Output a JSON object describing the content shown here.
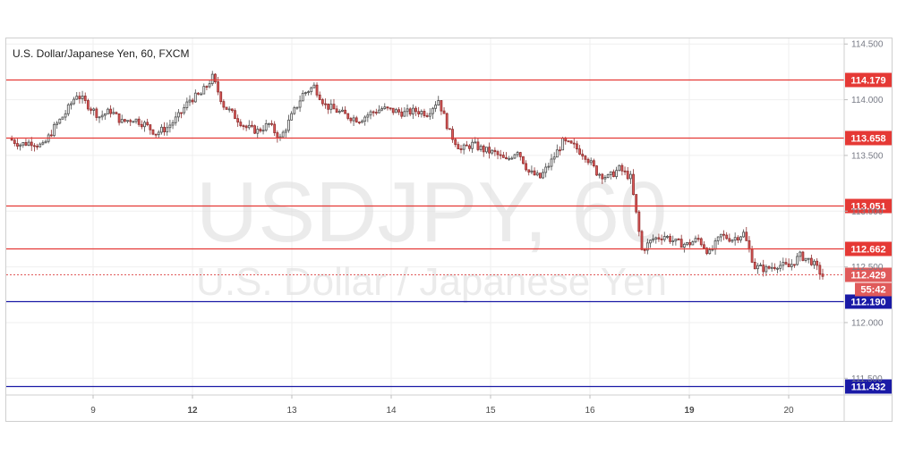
{
  "header": {
    "title": "U.S. Dollar/Japanese Yen, 60, FXCM"
  },
  "watermark": {
    "symbol": "USDJPY, 60",
    "name": "U.S. Dollar / Japanese Yen"
  },
  "colors": {
    "resistance": "#e53935",
    "support": "#1a1aa6",
    "current_price": "#e05a5a",
    "candle_up": "#ffffff",
    "candle_down": "#e05a5a",
    "grid": "#efefef"
  },
  "chart_data": {
    "type": "candlestick",
    "symbol": "USDJPY",
    "interval": "60",
    "ylim": [
      111.35,
      114.55
    ],
    "y_ticks": [
      "114.500",
      "114.000",
      "113.500",
      "113.000",
      "112.500",
      "112.000",
      "111.500"
    ],
    "x_tick_labels": [
      {
        "label": "9",
        "bold": false
      },
      {
        "label": "12",
        "bold": true
      },
      {
        "label": "13",
        "bold": false
      },
      {
        "label": "14",
        "bold": false
      },
      {
        "label": "15",
        "bold": false
      },
      {
        "label": "16",
        "bold": false
      },
      {
        "label": "19",
        "bold": true
      },
      {
        "label": "20",
        "bold": false
      }
    ],
    "levels": [
      {
        "value": 114.179,
        "label": "114.179",
        "type": "resistance"
      },
      {
        "value": 113.658,
        "label": "113.658",
        "type": "resistance"
      },
      {
        "value": 113.051,
        "label": "113.051",
        "type": "resistance"
      },
      {
        "value": 112.662,
        "label": "112.662",
        "type": "resistance"
      },
      {
        "value": 112.19,
        "label": "112.190",
        "type": "support"
      },
      {
        "value": 111.432,
        "label": "111.432",
        "type": "support"
      }
    ],
    "current_price": {
      "value": 112.429,
      "label": "112.429",
      "countdown": "55:42"
    },
    "close_path": [
      [
        0,
        113.65
      ],
      [
        4,
        113.6
      ],
      [
        8,
        113.62
      ],
      [
        12,
        113.58
      ],
      [
        16,
        113.75
      ],
      [
        20,
        113.88
      ],
      [
        24,
        114.05
      ],
      [
        28,
        113.95
      ],
      [
        32,
        113.85
      ],
      [
        36,
        113.9
      ],
      [
        40,
        113.8
      ],
      [
        44,
        113.83
      ],
      [
        48,
        113.78
      ],
      [
        52,
        113.7
      ],
      [
        56,
        113.75
      ],
      [
        60,
        113.85
      ],
      [
        64,
        114.0
      ],
      [
        68,
        114.05
      ],
      [
        72,
        114.2
      ],
      [
        76,
        113.95
      ],
      [
        80,
        113.85
      ],
      [
        84,
        113.75
      ],
      [
        88,
        113.72
      ],
      [
        92,
        113.78
      ],
      [
        96,
        113.65
      ],
      [
        100,
        113.85
      ],
      [
        104,
        114.05
      ],
      [
        108,
        114.12
      ],
      [
        112,
        113.95
      ],
      [
        116,
        113.9
      ],
      [
        120,
        113.85
      ],
      [
        124,
        113.82
      ],
      [
        128,
        113.88
      ],
      [
        132,
        113.92
      ],
      [
        136,
        113.9
      ],
      [
        140,
        113.88
      ],
      [
        144,
        113.9
      ],
      [
        148,
        113.88
      ],
      [
        152,
        114.0
      ],
      [
        156,
        113.7
      ],
      [
        160,
        113.55
      ],
      [
        164,
        113.6
      ],
      [
        168,
        113.55
      ],
      [
        172,
        113.52
      ],
      [
        176,
        113.45
      ],
      [
        180,
        113.55
      ],
      [
        184,
        113.35
      ],
      [
        188,
        113.3
      ],
      [
        192,
        113.45
      ],
      [
        196,
        113.62
      ],
      [
        200,
        113.58
      ],
      [
        204,
        113.5
      ],
      [
        208,
        113.35
      ],
      [
        212,
        113.3
      ],
      [
        216,
        113.38
      ],
      [
        220,
        113.3
      ],
      [
        224,
        112.65
      ],
      [
        228,
        112.75
      ],
      [
        232,
        112.78
      ],
      [
        236,
        112.72
      ],
      [
        240,
        112.7
      ],
      [
        244,
        112.75
      ],
      [
        248,
        112.62
      ],
      [
        252,
        112.78
      ],
      [
        256,
        112.75
      ],
      [
        260,
        112.8
      ],
      [
        264,
        112.5
      ],
      [
        268,
        112.48
      ],
      [
        272,
        112.52
      ],
      [
        276,
        112.5
      ],
      [
        280,
        112.6
      ],
      [
        284,
        112.55
      ],
      [
        288,
        112.42
      ]
    ]
  }
}
